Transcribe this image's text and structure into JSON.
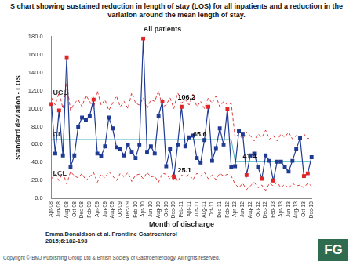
{
  "chart_data": {
    "type": "line",
    "title": "S chart showing sustained reduction in length of stay (LOS) for all inpatients and a reduction in the variation around the mean length of stay.",
    "subtitle": "All patients",
    "x_label": "Month of discharge",
    "y_label": "Standard deviation - LOS",
    "categories": [
      "Apr-08",
      null,
      "Jun-08",
      null,
      "Aug-08",
      null,
      "Oct-08",
      null,
      "Dec-08",
      null,
      "Feb-09",
      null,
      "Apr-09",
      null,
      "Jun-09",
      null,
      "Aug-09",
      null,
      "Oct-09",
      null,
      "Dec-09",
      null,
      "Feb-10",
      null,
      "Apr-10",
      null,
      "Jun-10",
      null,
      "Aug-10",
      null,
      "Oct-10",
      null,
      "Dec-10",
      null,
      "Feb-11",
      null,
      "Apr-11",
      null,
      "Jun-11",
      null,
      "Aug-11",
      null,
      "Oct-11",
      null,
      "Dec-11",
      null,
      "Feb-12",
      null,
      "Apr-12",
      null,
      "Jun-12",
      null,
      "Aug-12",
      null,
      "Oct-12",
      null,
      "Dec-12",
      null,
      "Feb-13",
      null,
      "Apr-13",
      null,
      "Jun-13",
      null,
      "Aug-13",
      null,
      "Oct-13",
      null,
      "Dec-13"
    ],
    "ylim": [
      0,
      180
    ],
    "yticks": [
      {
        "value": 0,
        "label": "0.0"
      },
      {
        "value": 20,
        "label": "20.0"
      },
      {
        "value": 40,
        "label": "40.0"
      },
      {
        "value": 60,
        "label": "60.0"
      },
      {
        "value": 80,
        "label": "80.0"
      },
      {
        "value": 100,
        "label": "100.0"
      },
      {
        "value": 120,
        "label": "120.0"
      },
      {
        "value": 140,
        "label": "140.0"
      },
      {
        "value": 160,
        "label": "160.0"
      },
      {
        "value": 180,
        "label": "180.0"
      }
    ],
    "grid": false,
    "series": [
      {
        "color": "#1f3a93",
        "marker": "square",
        "line_style": "solid",
        "values": [
          105,
          50,
          98,
          48,
          157,
          35,
          48,
          80,
          90,
          87,
          92,
          110,
          50,
          47,
          58,
          90,
          78,
          57,
          55,
          48,
          60,
          52,
          45,
          60,
          178,
          52,
          58,
          50,
          92,
          108,
          36,
          55,
          24,
          60,
          102,
          58,
          68,
          70,
          45,
          40,
          65,
          102,
          42,
          56,
          78,
          60,
          100,
          35,
          36,
          75,
          72,
          26,
          48,
          50,
          35,
          22,
          48,
          42,
          20,
          41,
          41,
          35,
          30,
          42,
          55,
          67,
          25,
          28,
          46
        ],
        "colors": [
          "#e02424",
          "#1f3a93",
          "#e02424",
          "#1f3a93",
          "#e02424",
          "#1f3a93",
          "#1f3a93",
          "#1f3a93",
          "#1f3a93",
          "#1f3a93",
          "#1f3a93",
          "#e02424",
          "#1f3a93",
          "#1f3a93",
          "#1f3a93",
          "#1f3a93",
          "#1f3a93",
          "#1f3a93",
          "#1f3a93",
          "#1f3a93",
          "#1f3a93",
          "#1f3a93",
          "#1f3a93",
          "#1f3a93",
          "#e02424",
          "#1f3a93",
          "#1f3a93",
          "#1f3a93",
          "#1f3a93",
          "#e02424",
          "#1f3a93",
          "#1f3a93",
          "#e02424",
          "#1f3a93",
          "#e02424",
          "#1f3a93",
          "#1f3a93",
          "#1f3a93",
          "#1f3a93",
          "#1f3a93",
          "#1f3a93",
          "#e02424",
          "#1f3a93",
          "#1f3a93",
          "#1f3a93",
          "#1f3a93",
          "#e02424",
          "#1f3a93",
          "#1f3a93",
          "#1f3a93",
          "#1f3a93",
          "#e02424",
          "#1f3a93",
          "#1f3a93",
          "#1f3a93",
          "#e02424",
          "#1f3a93",
          "#1f3a93",
          "#e02424",
          "#1f3a93",
          "#1f3a93",
          "#1f3a93",
          "#1f3a93",
          "#1f3a93",
          "#1f3a93",
          "#1f3a93",
          "#e02424",
          "#e02424",
          "#1f3a93"
        ]
      },
      {
        "name": "UCL",
        "color": "#e03a3a",
        "marker": "none",
        "line_style": "dashed",
        "values": [
          112,
          104,
          118,
          100,
          128,
          98,
          106,
          110,
          102,
          115,
          108,
          100,
          120,
          104,
          110,
          98,
          106,
          114,
          102,
          108,
          100,
          118,
          106,
          104,
          112,
          100,
          110,
          108,
          120,
          102,
          104,
          112,
          100,
          118,
          106,
          110,
          104,
          116,
          102,
          108,
          100,
          112,
          106,
          114,
          102,
          108,
          104,
          106,
          68,
          72,
          66,
          74,
          70,
          64,
          72,
          68,
          76,
          66,
          70,
          64,
          72,
          68,
          74,
          66,
          70,
          68,
          72,
          66,
          70
        ]
      },
      {
        "name": "CL",
        "color": "#3fb0c0",
        "marker": "none",
        "line_style": "solid",
        "values": [
          65.6,
          65.6,
          65.6,
          65.6,
          65.6,
          65.6,
          65.6,
          65.6,
          65.6,
          65.6,
          65.6,
          65.6,
          65.6,
          65.6,
          65.6,
          65.6,
          65.6,
          65.6,
          65.6,
          65.6,
          65.6,
          65.6,
          65.6,
          65.6,
          65.6,
          65.6,
          65.6,
          65.6,
          65.6,
          65.6,
          65.6,
          65.6,
          65.6,
          65.6,
          65.6,
          65.6,
          65.6,
          65.6,
          65.6,
          65.6,
          65.6,
          65.6,
          65.6,
          65.6,
          65.6,
          65.6,
          65.6,
          65.6,
          41.4,
          41.4,
          41.4,
          41.4,
          41.4,
          41.4,
          41.4,
          41.4,
          41.4,
          41.4,
          41.4,
          41.4,
          41.4,
          41.4,
          41.4,
          41.4,
          41.4,
          41.4,
          41.4,
          41.4,
          41.4
        ]
      },
      {
        "name": "LCL",
        "color": "#e03a3a",
        "marker": "none",
        "line_style": "dashed",
        "values": [
          22,
          27,
          20,
          29,
          16,
          30,
          25,
          23,
          28,
          20,
          24,
          29,
          18,
          27,
          23,
          30,
          25,
          20,
          28,
          24,
          29,
          19,
          26,
          27,
          22,
          29,
          24,
          25,
          18,
          28,
          27,
          22,
          29,
          19,
          26,
          24,
          27,
          21,
          28,
          25,
          29,
          22,
          26,
          21,
          28,
          25,
          27,
          25,
          16,
          12,
          17,
          10,
          14,
          18,
          12,
          15,
          9,
          17,
          14,
          18,
          12,
          16,
          11,
          17,
          14,
          15,
          12,
          17,
          14
        ]
      }
    ],
    "annotations": [
      {
        "value": 65.6,
        "x": 37
      },
      {
        "value": 41.4,
        "x": 50
      },
      {
        "value": 106.2,
        "x": 33
      },
      {
        "value": 25.1,
        "x": 33
      }
    ]
  },
  "page": {
    "citation": "Emma Donaldson et al. Frontline Gastroenterol 2015;6:182-193",
    "copyright": "Copyright © BMJ Publishing Group Ltd & British Society of Gastroenterology. All rights reserved.",
    "logo": "FG"
  }
}
